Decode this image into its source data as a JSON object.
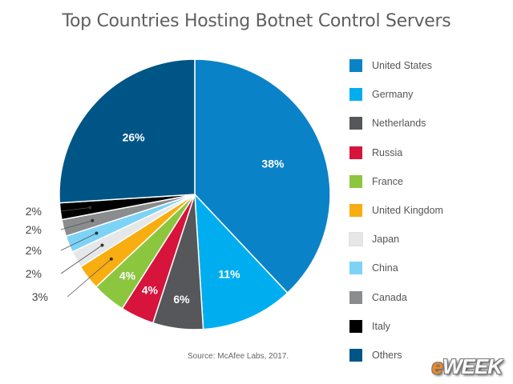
{
  "chart_data": {
    "type": "pie",
    "title": "Top Countries Hosting Botnet Control Servers",
    "source": "Source: McAfee Labs, 2017.",
    "slices": [
      {
        "label": "United States",
        "value": 38,
        "display": "38%",
        "color": "#0a82c8"
      },
      {
        "label": "Germany",
        "value": 11,
        "display": "11%",
        "color": "#00aef0"
      },
      {
        "label": "Netherlands",
        "value": 6,
        "display": "6%",
        "color": "#55575a"
      },
      {
        "label": "Russia",
        "value": 4,
        "display": "4%",
        "color": "#d6143c"
      },
      {
        "label": "France",
        "value": 4,
        "display": "4%",
        "color": "#8cc63f"
      },
      {
        "label": "United Kingdom",
        "value": 3,
        "display": "3%",
        "color": "#f8ad10"
      },
      {
        "label": "Japan",
        "value": 2,
        "display": "2%",
        "color": "#e6e7e8"
      },
      {
        "label": "China",
        "value": 2,
        "display": "2%",
        "color": "#7dd3f5"
      },
      {
        "label": "Canada",
        "value": 2,
        "display": "2%",
        "color": "#8a8c8e"
      },
      {
        "label": "Italy",
        "value": 2,
        "display": "2%",
        "color": "#000000"
      },
      {
        "label": "Others",
        "value": 26,
        "display": "26%",
        "color": "#005587"
      }
    ],
    "legend_position": "right"
  },
  "watermark": {
    "prefix": "e",
    "text": "WEEK"
  }
}
